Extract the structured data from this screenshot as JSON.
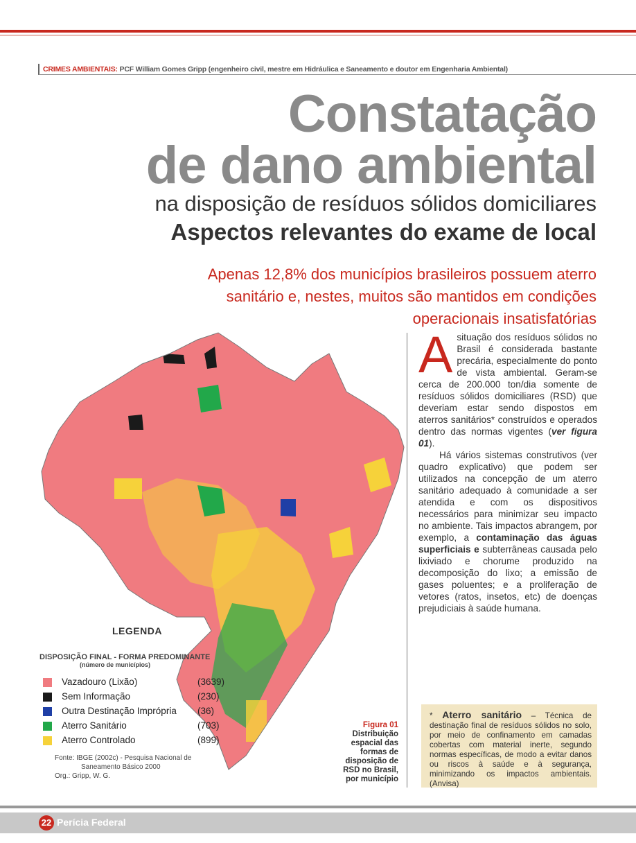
{
  "header": {
    "section": "CRIMES AMBIENTAIS:",
    "byline": " PCF William Gomes Gripp (engenheiro civil, mestre em Hidráulica e Saneamento e doutor em Engenharia Ambiental)"
  },
  "title": {
    "line1": "Constatação",
    "line2": "de dano ambiental",
    "subtitle": "na disposição de resíduos sólidos domiciliares",
    "subtitle2": "Aspectos relevantes do exame de local"
  },
  "lead": "Apenas 12,8% dos municípios brasileiros possuem aterro sanitário e, nestes,  muitos são mantidos em condições operacionais insatisfatórias",
  "colors": {
    "accent": "#c8281e",
    "vazadouro": "#f07b80",
    "sem_info": "#1a1a1a",
    "outra": "#1f3fa6",
    "sanitario": "#22a84a",
    "controlado": "#f6d23a"
  },
  "legend": {
    "title": "LEGENDA",
    "subtitle": "DISPOSIÇÃO FINAL - FORMA PREDOMINANTE",
    "subtitle2": "(número de municípios)",
    "items": [
      {
        "label": "Vazadouro (Lixão)",
        "count": "(3639)"
      },
      {
        "label": "Sem Informação",
        "count": "(230)"
      },
      {
        "label": "Outra Destinação Imprópria",
        "count": "(36)"
      },
      {
        "label": "Aterro Sanitário",
        "count": "(703)"
      },
      {
        "label": "Aterro Controlado",
        "count": "(899)"
      }
    ],
    "source1": "Fonte: IBGE (2002c) - Pesquisa Nacional de",
    "source2": "Saneamento Básico 2000",
    "source3": "Org.: Gripp, W. G."
  },
  "figure": {
    "number": "Figura 01",
    "caption": "Distribuição espacial das formas de disposição de RSD no Brasil, por município"
  },
  "body": {
    "dropcap": "A",
    "p1_a": "situação dos resíduos sólidos no Brasil é considerada bastante precária, especialmente do ponto de vista ambiental. Geram-se cerca de 200.000 ton/dia somente de resíduos sólidos domiciliares (RSD) que deveriam estar sendo dispostos em aterros sanitários* construídos e operados dentro das normas vigentes (",
    "p1_ref": "ver figura 01",
    "p1_b": ").",
    "p2_a": "Há vários sistemas construtivos (ver quadro explicativo) que podem ser utilizados na concepção de um aterro sanitário adequado à comunidade a ser atendida e com os dispositivos necessários para minimizar seu impacto no ambiente. Tais impactos abrangem, por exemplo, a ",
    "p2_b": "contaminação das águas superficiais e",
    "p2_c": " subterrâneas causada pelo lixiviado e chorume produzido na decomposição do lixo; a emissão de gases poluentes; e a proliferação de vetores (ratos, insetos, etc) de doenças prejudiciais à saúde humana."
  },
  "box": {
    "star": "* ",
    "term": "Aterro sanitário",
    "text": " – Técnica de destinação final de resíduos sólidos no solo, por meio de confinamento em camadas cobertas com material inerte, segundo normas específicas, de modo a evitar danos ou riscos à saúde e à segurança, minimizando os impactos ambientais. (Anvisa)"
  },
  "footer": {
    "page": "22",
    "magazine": "Perícia Federal"
  }
}
